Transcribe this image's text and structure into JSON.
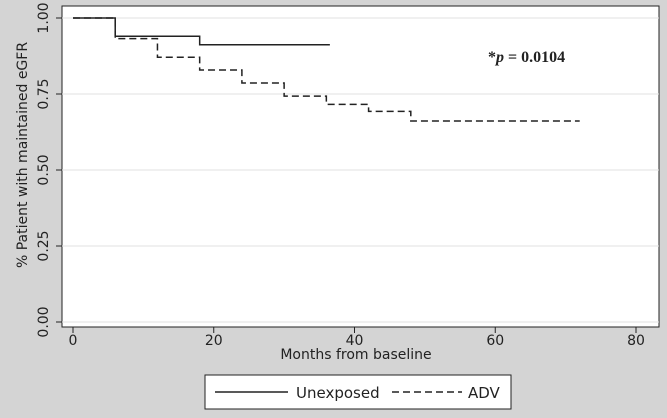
{
  "colors": {
    "outer_background": "#d4d4d4",
    "plot_background": "#ffffff",
    "grid": "#e2e2e2",
    "line": "#222222"
  },
  "chart_data": {
    "type": "line",
    "title": "",
    "xlabel": "Months from baseline",
    "ylabel": "% Patient with maintained eGFR",
    "xlim": [
      0,
      80
    ],
    "ylim": [
      0,
      1
    ],
    "xticks": [
      0,
      20,
      40,
      60,
      80
    ],
    "yticks": [
      0.0,
      0.25,
      0.5,
      0.75,
      1.0
    ],
    "ytick_labels": [
      "0.00",
      "0.25",
      "0.50",
      "0.75",
      "1.00"
    ],
    "grid": "horizontal",
    "legend_position": "bottom-center",
    "series": [
      {
        "name": "Unexposed",
        "style": "solid",
        "steps": [
          [
            0,
            1.0
          ],
          [
            6,
            0.94
          ],
          [
            18,
            0.912
          ],
          [
            36.5,
            0.912
          ]
        ]
      },
      {
        "name": "ADV",
        "style": "dashed",
        "steps": [
          [
            0,
            1.0
          ],
          [
            6,
            0.932
          ],
          [
            12,
            0.871
          ],
          [
            18,
            0.829
          ],
          [
            24,
            0.786
          ],
          [
            30,
            0.743
          ],
          [
            36,
            0.716
          ],
          [
            42,
            0.693
          ],
          [
            48,
            0.661
          ],
          [
            72,
            0.661
          ]
        ]
      }
    ],
    "annotation": {
      "prefix": "*",
      "p_symbol": "p",
      "text": " = 0.0104"
    }
  }
}
